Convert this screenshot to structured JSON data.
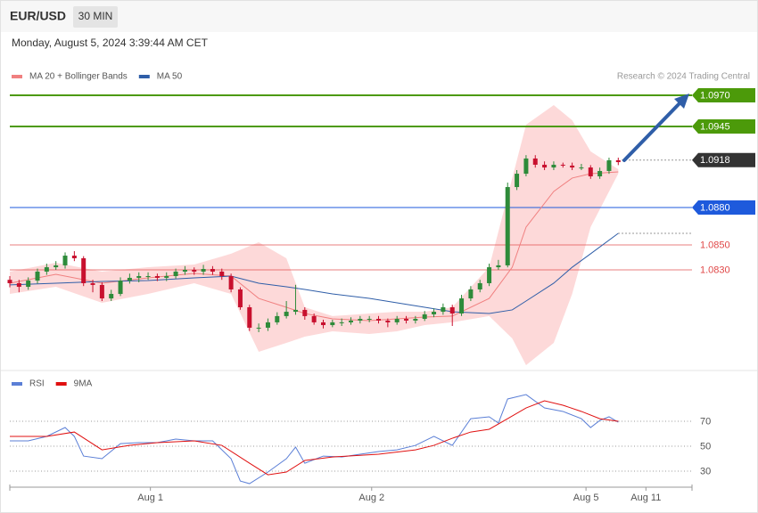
{
  "header": {
    "symbol": "EUR/USD",
    "timeframe": "30 MIN",
    "timestamp": "Monday, August 5, 2024 3:39:44 AM CET"
  },
  "chart_data": [
    {
      "type": "candlestick",
      "credit": "Research © 2024 Trading Central",
      "xlim": [
        0,
        148
      ],
      "ylim": [
        1.075,
        1.10207
      ],
      "up_color": "#2e8b3a",
      "down_color": "#c8102e",
      "x": [
        0,
        2,
        4,
        6,
        8,
        10,
        12,
        14,
        16,
        18,
        20,
        22,
        24,
        26,
        28,
        30,
        32,
        34,
        36,
        38,
        40,
        42,
        44,
        46,
        48,
        50,
        52,
        54,
        56,
        58,
        60,
        62,
        64,
        66,
        68,
        70,
        72,
        74,
        76,
        78,
        80,
        82,
        84,
        86,
        88,
        90,
        92,
        94,
        96,
        98,
        100,
        102,
        104,
        106,
        108,
        110,
        112,
        114,
        116,
        118,
        120,
        122,
        124,
        126,
        128,
        130,
        132
      ],
      "open": [
        1.0822,
        1.08193,
        1.08164,
        1.08214,
        1.08286,
        1.08321,
        1.08336,
        1.08414,
        1.08393,
        1.08193,
        1.08179,
        1.08071,
        1.08107,
        1.08214,
        1.08236,
        1.0825,
        1.0825,
        1.08236,
        1.0825,
        1.08286,
        1.083,
        1.08286,
        1.08307,
        1.08286,
        1.0825,
        1.08143,
        1.08,
        1.07836,
        1.07836,
        1.07879,
        1.07929,
        1.07964,
        1.07979,
        1.07929,
        1.07879,
        1.07857,
        1.07879,
        1.07879,
        1.07893,
        1.07907,
        1.07907,
        1.07893,
        1.07879,
        1.07907,
        1.07893,
        1.07907,
        1.07943,
        1.07964,
        1.08,
        1.0795,
        1.08071,
        1.08143,
        1.08193,
        1.08321,
        1.08336,
        1.08964,
        1.09071,
        1.09193,
        1.09143,
        1.09121,
        1.09143,
        1.09136,
        1.09121,
        1.09121,
        1.0905,
        1.09093,
        1.09179
      ],
      "high": [
        1.0825,
        1.0822,
        1.0824,
        1.0831,
        1.0835,
        1.0837,
        1.0844,
        1.0845,
        1.0841,
        1.0822,
        1.082,
        1.0814,
        1.0824,
        1.0827,
        1.0828,
        1.0828,
        1.0827,
        1.0828,
        1.0831,
        1.0833,
        1.0832,
        1.0834,
        1.0833,
        1.0831,
        1.0827,
        1.0816,
        1.0802,
        1.0787,
        1.0791,
        1.0796,
        1.0805,
        1.0818,
        1.08,
        1.0795,
        1.079,
        1.079,
        1.0791,
        1.0792,
        1.0793,
        1.0793,
        1.0793,
        1.0791,
        1.0793,
        1.0793,
        1.0793,
        1.0797,
        1.0799,
        1.0803,
        1.0802,
        1.081,
        1.0817,
        1.0822,
        1.0835,
        1.0838,
        1.09,
        1.091,
        1.0922,
        1.0922,
        1.0917,
        1.0917,
        1.0916,
        1.0916,
        1.0915,
        1.0914,
        1.0912,
        1.092,
        1.092
      ],
      "low": [
        1.0816,
        1.0812,
        1.0814,
        1.0819,
        1.0826,
        1.083,
        1.0831,
        1.0837,
        1.0817,
        1.0812,
        1.0805,
        1.0805,
        1.0809,
        1.0819,
        1.082,
        1.0822,
        1.0821,
        1.0821,
        1.0823,
        1.0826,
        1.0826,
        1.0826,
        1.0826,
        1.0822,
        1.0812,
        1.0798,
        1.0781,
        1.078,
        1.0781,
        1.0786,
        1.0791,
        1.0794,
        1.079,
        1.0786,
        1.0783,
        1.0784,
        1.0785,
        1.0786,
        1.0787,
        1.0788,
        1.0787,
        1.0784,
        1.0786,
        1.0787,
        1.0787,
        1.0789,
        1.0792,
        1.0794,
        1.0785,
        1.0793,
        1.0805,
        1.0812,
        1.0817,
        1.083,
        1.0832,
        1.0894,
        1.0905,
        1.0912,
        1.091,
        1.091,
        1.0912,
        1.091,
        1.091,
        1.0903,
        1.0903,
        1.0907,
        1.0914
      ],
      "close": [
        1.08193,
        1.08164,
        1.08214,
        1.08286,
        1.08321,
        1.08336,
        1.08414,
        1.08393,
        1.08193,
        1.08179,
        1.08071,
        1.08107,
        1.08214,
        1.08236,
        1.0825,
        1.0825,
        1.08236,
        1.0825,
        1.08286,
        1.083,
        1.08286,
        1.08307,
        1.08286,
        1.0825,
        1.08143,
        1.08,
        1.07836,
        1.07836,
        1.07879,
        1.07929,
        1.07964,
        1.07979,
        1.07929,
        1.07879,
        1.07857,
        1.07879,
        1.07879,
        1.07893,
        1.07907,
        1.07907,
        1.07893,
        1.07879,
        1.07907,
        1.07893,
        1.07907,
        1.07943,
        1.07964,
        1.08,
        1.0795,
        1.08071,
        1.08143,
        1.08193,
        1.08321,
        1.08336,
        1.08964,
        1.09071,
        1.09193,
        1.09143,
        1.09121,
        1.09143,
        1.09136,
        1.09121,
        1.09121,
        1.0905,
        1.09093,
        1.09179,
        1.09164
      ],
      "series": [
        {
          "name": "MA 20 + Bollinger Bands",
          "color": "#f08080",
          "band_color": "#fdd9d9",
          "x": [
            0,
            10,
            20,
            30,
            40,
            48,
            54,
            60,
            64,
            70,
            78,
            84,
            90,
            96,
            104,
            109,
            112,
            118,
            122,
            126,
            132
          ],
          "values": [
            1.08193,
            1.08264,
            1.08193,
            1.08236,
            1.08271,
            1.0825,
            1.08071,
            1.08,
            1.0795,
            1.07907,
            1.07893,
            1.07907,
            1.07921,
            1.07929,
            1.08071,
            1.08321,
            1.08643,
            1.08929,
            1.09036,
            1.09071,
            1.09086
          ],
          "upper": [
            1.08286,
            1.08357,
            1.08286,
            1.08321,
            1.08343,
            1.08429,
            1.08521,
            1.08393,
            1.08,
            1.07929,
            1.0795,
            1.07964,
            1.07964,
            1.08,
            1.08321,
            1.09036,
            1.09464,
            1.09621,
            1.095,
            1.0925,
            1.09107
          ],
          "lower": [
            1.08107,
            1.08164,
            1.08036,
            1.08107,
            1.08193,
            1.08107,
            1.07643,
            1.07714,
            1.07764,
            1.07807,
            1.07786,
            1.07807,
            1.07857,
            1.07879,
            1.07929,
            1.0775,
            1.07536,
            1.07714,
            1.08107,
            1.08643,
            1.09071
          ]
        },
        {
          "name": "MA 50",
          "color": "#2f5ea8",
          "x": [
            0,
            10,
            20,
            30,
            40,
            48,
            54,
            60,
            64,
            70,
            78,
            84,
            90,
            96,
            104,
            109,
            112,
            118,
            122,
            126,
            132
          ],
          "values": [
            1.08179,
            1.08193,
            1.08207,
            1.08214,
            1.08236,
            1.0825,
            1.08193,
            1.08164,
            1.08143,
            1.08107,
            1.08071,
            1.08036,
            1.08,
            1.07964,
            1.0795,
            1.07979,
            1.0805,
            1.08193,
            1.08321,
            1.08429,
            1.08593
          ]
        }
      ],
      "levels": [
        {
          "value": 1.097,
          "label": "1.0970",
          "color": "#4c9a0a",
          "tag": true
        },
        {
          "value": 1.0945,
          "label": "1.0945",
          "color": "#4c9a0a",
          "tag": true
        },
        {
          "value": 1.0918,
          "label": "1.0918",
          "color": "#333333",
          "tag": true,
          "dotted": true
        },
        {
          "value": 1.088,
          "label": "1.0880",
          "color": "#1e5adc",
          "tag": true
        },
        {
          "value": 1.085,
          "label": "1.0850",
          "color": "#e04848",
          "tag": false
        },
        {
          "value": 1.083,
          "label": "1.0830",
          "color": "#e04848",
          "tag": false
        }
      ]
    },
    {
      "type": "line",
      "xlim": [
        0,
        148
      ],
      "ylim": [
        18.6,
        109.3
      ],
      "yticks": [
        70,
        50,
        30
      ],
      "xticks": [
        {
          "value": 30.5,
          "label": "Aug 1"
        },
        {
          "value": 78.5,
          "label": "Aug 2"
        },
        {
          "value": 125,
          "label": "Aug 5"
        },
        {
          "value": 138,
          "label": "Aug 11"
        }
      ],
      "series": [
        {
          "name": "RSI",
          "color": "#5b7fd6",
          "x": [
            0,
            4,
            8,
            12,
            14,
            16,
            20,
            24,
            28,
            32,
            36,
            40,
            44,
            48,
            50,
            52,
            56,
            60,
            62,
            64,
            68,
            72,
            76,
            80,
            84,
            88,
            92,
            96,
            100,
            104,
            106,
            108,
            112,
            116,
            120,
            124,
            126,
            128,
            130,
            132
          ],
          "values": [
            54.3,
            54.3,
            57.9,
            65,
            57.9,
            42.1,
            40,
            52.1,
            52.9,
            52.9,
            55.7,
            54.3,
            54.3,
            40,
            22.1,
            20,
            29.3,
            40,
            49.3,
            36.4,
            42.1,
            41.4,
            43.6,
            45.7,
            47.1,
            50.7,
            57.9,
            50.7,
            72.1,
            73.6,
            68.6,
            87.9,
            91.4,
            80.7,
            77.9,
            72.1,
            65,
            70.7,
            73.6,
            69.3
          ]
        },
        {
          "name": "9MA",
          "color": "#e01010",
          "x": [
            0,
            8,
            14,
            20,
            26,
            32,
            40,
            46,
            52,
            56,
            60,
            64,
            70,
            80,
            88,
            92,
            96,
            100,
            104,
            108,
            112,
            116,
            120,
            124,
            128,
            132
          ],
          "values": [
            57.9,
            57.9,
            61.4,
            47.1,
            50.7,
            52.9,
            54.3,
            50.7,
            36.4,
            27.1,
            29.3,
            38.6,
            41.4,
            43.6,
            47.1,
            50.7,
            56.4,
            61.4,
            63.6,
            72.1,
            80.7,
            86.4,
            82.9,
            77.9,
            72.1,
            70
          ]
        }
      ]
    }
  ]
}
